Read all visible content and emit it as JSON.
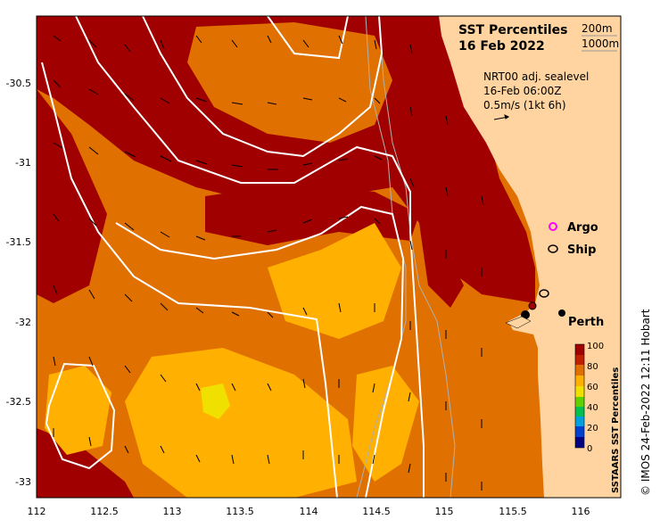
{
  "map": {
    "title_line1": "SST Percentiles",
    "title_line2": "16 Feb 2022",
    "depth_200": "200m",
    "depth_1000": "1000m",
    "velocity_source": "NRT00 adj. sealevel",
    "velocity_time": "16-Feb 06:00Z",
    "velocity_scale": "0.5m/s (1kt 6h)",
    "legend": [
      {
        "label": "Argo",
        "color": "#ff00ff"
      },
      {
        "label": "Ship",
        "color": "#000000"
      }
    ],
    "place_label": "Perth",
    "lon_ticks": [
      "112",
      "112.5",
      "113",
      "113.5",
      "114",
      "114.5",
      "115",
      "115.5",
      "116"
    ],
    "lat_ticks": [
      "-30.5",
      "-31",
      "-31.5",
      "-32",
      "-32.5",
      "-33"
    ],
    "colorbar": {
      "title": "SSTAARS SST Percentiles",
      "ticks": [
        "100",
        "80",
        "60",
        "40",
        "20",
        "0"
      ],
      "colors": [
        "#000080",
        "#0040d0",
        "#00a0e0",
        "#00c050",
        "#60d000",
        "#f0e000",
        "#ffb000",
        "#e07000",
        "#c02000",
        "#a00000"
      ]
    },
    "credit": "© IMOS 24-Feb-2022 12:11 Hobart",
    "land_color": "#ffd4a0",
    "contour_color": "#ffffff"
  }
}
